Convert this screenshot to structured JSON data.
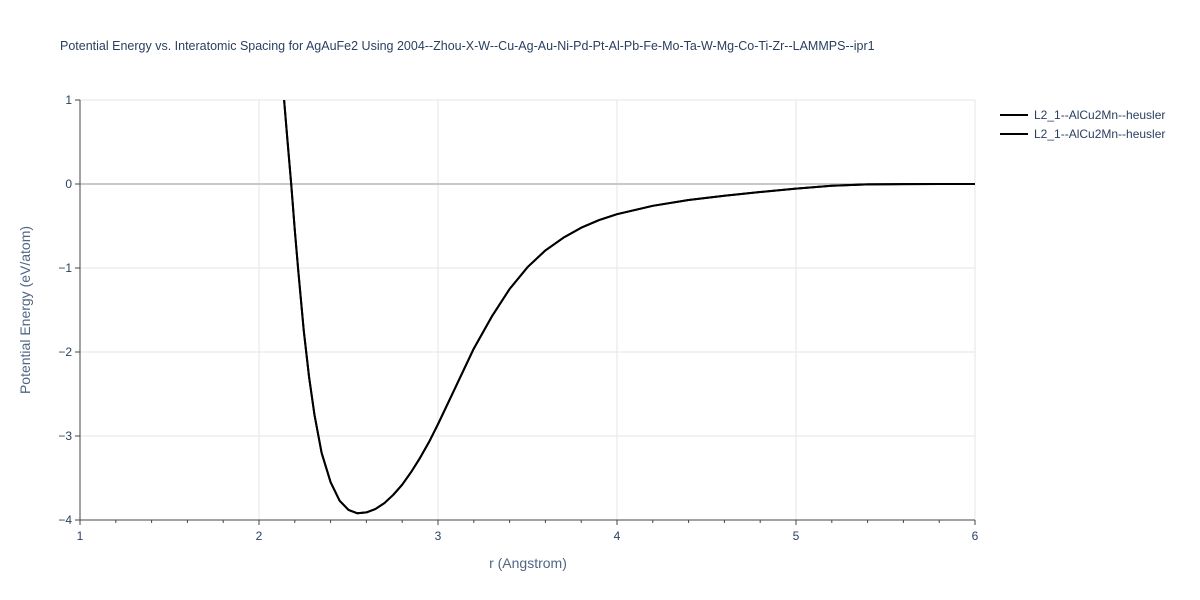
{
  "chart_data": {
    "type": "line",
    "title": "Potential Energy vs. Interatomic Spacing for AgAuFe2 Using 2004--Zhou-X-W--Cu-Ag-Au-Ni-Pd-Pt-Al-Pb-Fe-Mo-Ta-W-Mg-Co-Ti-Zr--LAMMPS--ipr1",
    "xlabel": "r (Angstrom)",
    "ylabel": "Potential Energy (eV/atom)",
    "xlim": [
      1,
      6
    ],
    "ylim": [
      -4,
      1
    ],
    "x_ticks": [
      1,
      2,
      3,
      4,
      5,
      6
    ],
    "y_ticks": [
      -4,
      -3,
      -2,
      -1,
      0,
      1
    ],
    "x_tick_labels": [
      "1",
      "2",
      "3",
      "4",
      "5",
      "6"
    ],
    "y_tick_labels": [
      "−4",
      "−3",
      "−2",
      "−1",
      "0",
      "1"
    ],
    "grid": true,
    "legend_position": "top-right",
    "series": [
      {
        "name": "L2_1--AlCu2Mn--heusler",
        "color": "#000000",
        "x": [
          2.14,
          2.16,
          2.18,
          2.2,
          2.22,
          2.25,
          2.28,
          2.31,
          2.35,
          2.4,
          2.45,
          2.5,
          2.55,
          2.6,
          2.65,
          2.7,
          2.75,
          2.8,
          2.85,
          2.9,
          2.95,
          3.0,
          3.1,
          3.2,
          3.3,
          3.4,
          3.5,
          3.6,
          3.7,
          3.8,
          3.9,
          4.0,
          4.2,
          4.4,
          4.6,
          4.8,
          5.0,
          5.2,
          5.4,
          5.6,
          5.8,
          6.0
        ],
        "y": [
          1.0,
          0.5,
          0.0,
          -0.55,
          -1.05,
          -1.75,
          -2.3,
          -2.75,
          -3.2,
          -3.55,
          -3.77,
          -3.88,
          -3.92,
          -3.91,
          -3.87,
          -3.8,
          -3.7,
          -3.58,
          -3.43,
          -3.26,
          -3.07,
          -2.86,
          -2.41,
          -1.96,
          -1.58,
          -1.25,
          -0.99,
          -0.79,
          -0.64,
          -0.52,
          -0.43,
          -0.36,
          -0.26,
          -0.19,
          -0.14,
          -0.095,
          -0.055,
          -0.02,
          -0.005,
          -0.001,
          0.0,
          0.0
        ]
      },
      {
        "name": "L2_1--AlCu2Mn--heusler",
        "color": "#000000",
        "x": [
          2.14,
          2.16,
          2.18,
          2.2,
          2.22,
          2.25,
          2.28,
          2.31,
          2.35,
          2.4,
          2.45,
          2.5,
          2.55,
          2.6,
          2.65,
          2.7,
          2.75,
          2.8,
          2.85,
          2.9,
          2.95,
          3.0,
          3.1,
          3.2,
          3.3,
          3.4,
          3.5,
          3.6,
          3.7,
          3.8,
          3.9,
          4.0,
          4.2,
          4.4,
          4.6,
          4.8,
          5.0,
          5.2,
          5.4,
          5.6,
          5.8,
          6.0
        ],
        "y": [
          1.0,
          0.5,
          0.0,
          -0.55,
          -1.05,
          -1.75,
          -2.3,
          -2.75,
          -3.2,
          -3.55,
          -3.77,
          -3.88,
          -3.92,
          -3.91,
          -3.87,
          -3.8,
          -3.7,
          -3.58,
          -3.43,
          -3.26,
          -3.07,
          -2.86,
          -2.41,
          -1.96,
          -1.58,
          -1.25,
          -0.99,
          -0.79,
          -0.64,
          -0.52,
          -0.43,
          -0.36,
          -0.26,
          -0.19,
          -0.14,
          -0.095,
          -0.055,
          -0.02,
          -0.005,
          -0.001,
          0.0,
          0.0
        ]
      }
    ]
  }
}
